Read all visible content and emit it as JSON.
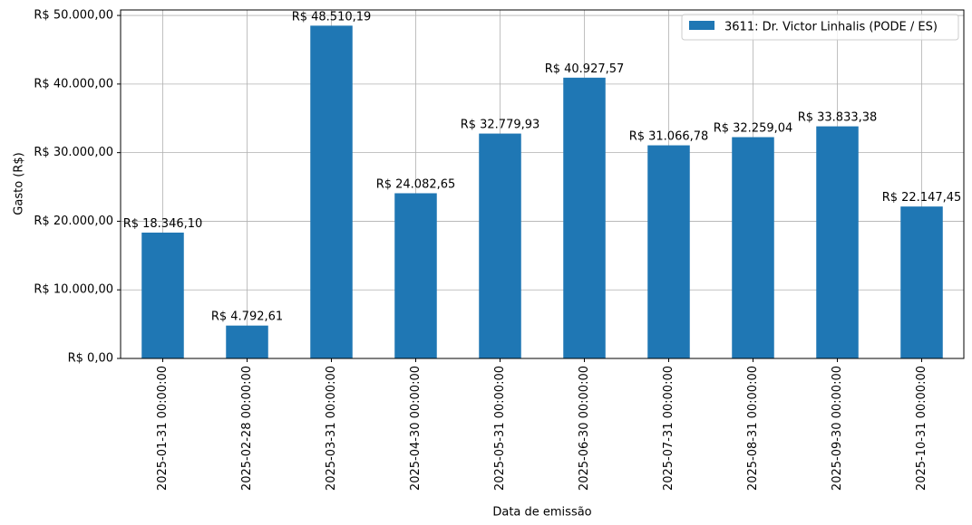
{
  "chart_data": {
    "type": "bar",
    "title": "",
    "xlabel": "Data de emissão",
    "ylabel": "Gasto (R$)",
    "ylim": [
      0,
      50800
    ],
    "yticks": [
      0,
      10000,
      20000,
      30000,
      40000,
      50000
    ],
    "ytick_labels": [
      "R$ 0,00",
      "R$ 10.000,00",
      "R$ 20.000,00",
      "R$ 30.000,00",
      "R$ 40.000,00",
      "R$ 50.000,00"
    ],
    "grid": true,
    "legend_position": "top-right",
    "bar_color": "#1f77b4",
    "categories": [
      "2025-01-31 00:00:00",
      "2025-02-28 00:00:00",
      "2025-03-31 00:00:00",
      "2025-04-30 00:00:00",
      "2025-05-31 00:00:00",
      "2025-06-30 00:00:00",
      "2025-07-31 00:00:00",
      "2025-08-31 00:00:00",
      "2025-09-30 00:00:00",
      "2025-10-31 00:00:00"
    ],
    "series": [
      {
        "name": "3611: Dr. Victor Linhalis (PODE / ES)",
        "values": [
          18346.1,
          4792.61,
          48510.19,
          24082.65,
          32779.93,
          40927.57,
          31066.78,
          32259.04,
          33833.38,
          22147.45
        ],
        "labels": [
          "R$ 18.346,10",
          "R$ 4.792,61",
          "R$ 48.510,19",
          "R$ 24.082,65",
          "R$ 32.779,93",
          "R$ 40.927,57",
          "R$ 31.066,78",
          "R$ 32.259,04",
          "R$ 33.833,38",
          "R$ 22.147,45"
        ]
      }
    ]
  }
}
